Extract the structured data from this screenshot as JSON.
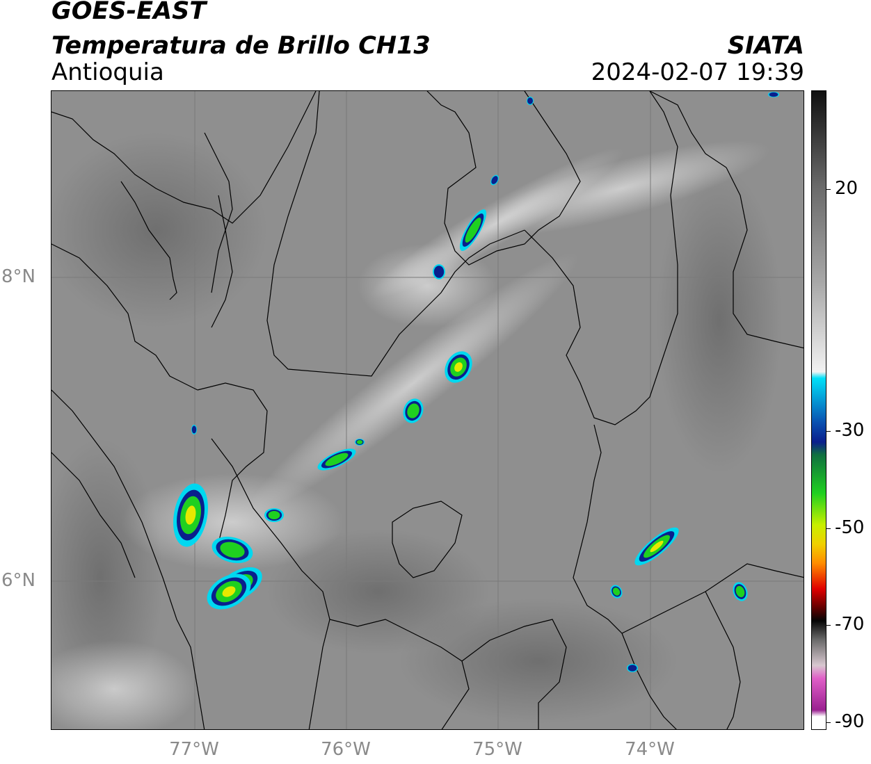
{
  "header": {
    "title_line1": "GOES-EAST",
    "title_line2": "Temperatura de Brillo CH13",
    "region": "Antioquia",
    "organization": "SIATA",
    "timestamp": "2024-02-07 19:39"
  },
  "axes": {
    "lat_labels": [
      "8°N",
      "6°N"
    ],
    "lon_labels": [
      "77°W",
      "76°W",
      "75°W",
      "74°W"
    ]
  },
  "colorbar": {
    "labels": [
      "20",
      "-30",
      "-50",
      "-70",
      "-90"
    ],
    "colors": {
      "warm_dark": "#1a1a1a",
      "mid_gray": "#8c8c8c",
      "white": "#f5f5f5",
      "cyan": "#00d8f0",
      "blue": "#0a1f8c",
      "green": "#1fd020",
      "yellow": "#e8e800",
      "orange": "#ff8c00",
      "red": "#e00000",
      "black": "#050505",
      "pink": "#e060c8",
      "purple": "#9a2090"
    }
  },
  "map_colors": {
    "background_gray": "#8f8f8f",
    "border_line": "#000000",
    "grid_line": "#7a7a7a"
  }
}
